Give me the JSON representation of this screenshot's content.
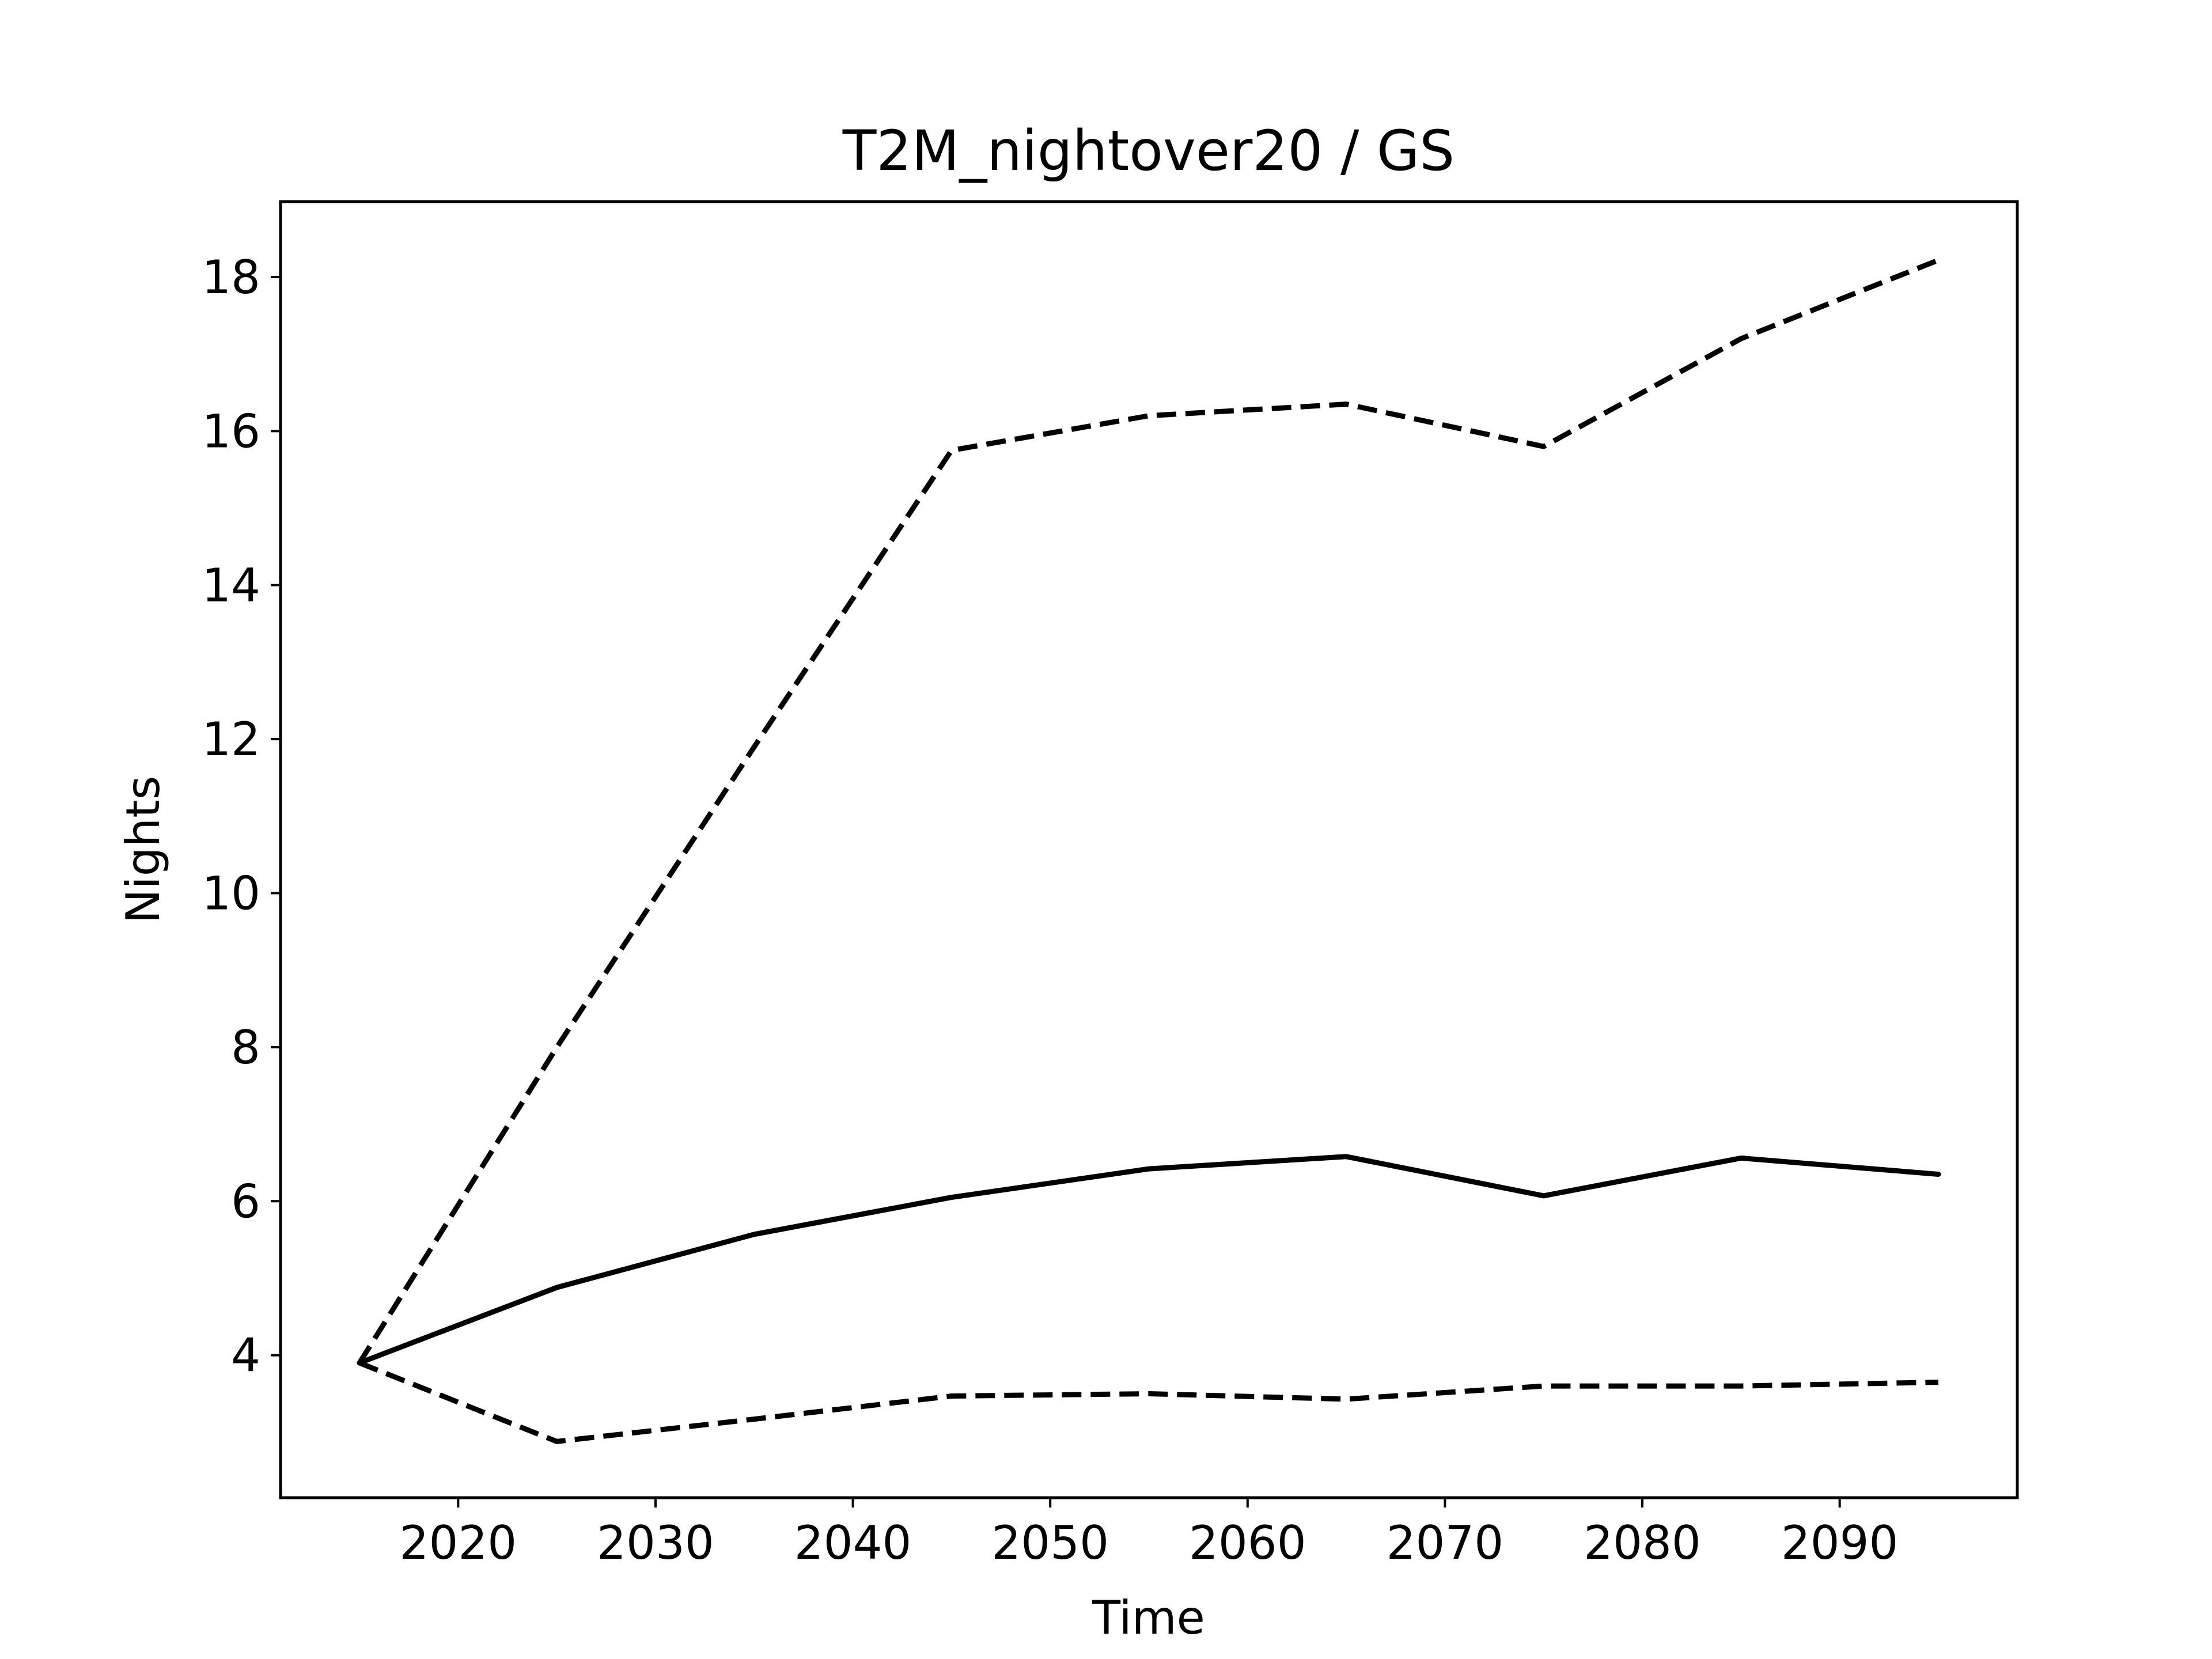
{
  "chart_data": {
    "type": "line",
    "title": "T2M_nightover20 / GS",
    "xlabel": "Time",
    "ylabel": "Nights",
    "xlim": [
      2011,
      2099
    ],
    "ylim": [
      2.15,
      18.98
    ],
    "xticks": [
      2020,
      2030,
      2040,
      2050,
      2060,
      2070,
      2080,
      2090
    ],
    "yticks": [
      4,
      6,
      8,
      10,
      12,
      14,
      16,
      18
    ],
    "grid": false,
    "legend": "none",
    "x": [
      2015,
      2025,
      2035,
      2045,
      2055,
      2065,
      2075,
      2085,
      2095
    ],
    "series": [
      {
        "values": [
          3.9,
          8.0,
          11.9,
          15.75,
          16.2,
          16.35,
          15.8,
          17.2,
          18.22
        ],
        "style": "dashed",
        "color": "#000000"
      },
      {
        "values": [
          3.9,
          4.88,
          5.57,
          6.05,
          6.42,
          6.58,
          6.07,
          6.56,
          6.35
        ],
        "style": "solid",
        "color": "#000000"
      },
      {
        "values": [
          3.9,
          2.88,
          3.17,
          3.47,
          3.5,
          3.43,
          3.6,
          3.6,
          3.65
        ],
        "style": "dashed",
        "color": "#000000"
      }
    ]
  }
}
